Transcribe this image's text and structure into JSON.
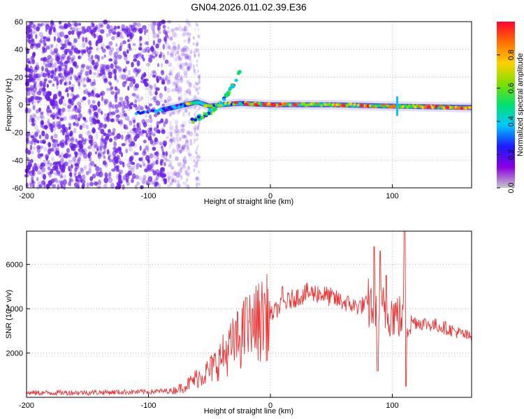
{
  "figure_title": "GN04.2026.011.02.39.E36",
  "colors": {
    "snr_line": "#ee3333",
    "scatter_purple": "#6a1fe6",
    "colorbar_stops": [
      "#c8c8c8",
      "#8a00e0",
      "#1a1aff",
      "#00c8ff",
      "#00e070",
      "#7ee000",
      "#ffd000",
      "#ff7000",
      "#ff0030"
    ]
  },
  "chart_data": [
    {
      "type": "heatmap",
      "title": "GN04.2026.011.02.39.E36",
      "xlabel": "Height of straight line (km)",
      "ylabel": "Frequency (Hz)",
      "xlim": [
        -200,
        165
      ],
      "ylim": [
        -60,
        60
      ],
      "x_ticks": [
        -200,
        -100,
        0,
        100
      ],
      "y_ticks": [
        -60,
        -40,
        -20,
        0,
        20,
        40,
        60
      ],
      "grid": true,
      "colorbar": {
        "label": "Normalized spectral amplitude",
        "range": [
          0,
          1
        ],
        "ticks": [
          "0.0",
          "0.2",
          "0.4",
          "0.6",
          "0.8"
        ]
      },
      "features": {
        "noise_region_x": [
          -200,
          -60
        ],
        "rising_branch": [
          [
            -65,
            -12
          ],
          [
            -55,
            -8
          ],
          [
            -45,
            -3
          ],
          [
            -40,
            2
          ],
          [
            -35,
            8
          ],
          [
            -30,
            15
          ],
          [
            -25,
            25
          ]
        ],
        "main_track": [
          [
            -110,
            -6
          ],
          [
            -90,
            -4
          ],
          [
            -70,
            0
          ],
          [
            -60,
            2
          ],
          [
            -50,
            -1
          ],
          [
            -40,
            0
          ],
          [
            -25,
            1
          ],
          [
            0,
            0
          ],
          [
            50,
            0
          ],
          [
            100,
            -1
          ],
          [
            165,
            -2
          ]
        ],
        "spike_x": 104
      }
    },
    {
      "type": "line",
      "xlabel": "Height of straight line (km)",
      "ylabel": "SNR (10 * v/v)",
      "xlim": [
        -200,
        165
      ],
      "ylim": [
        0,
        7500
      ],
      "x_ticks": [
        -200,
        -100,
        0,
        100
      ],
      "y_ticks": [
        2000,
        4000,
        6000
      ],
      "grid": true,
      "series": [
        {
          "envelope": [
            [
              -200,
              200
            ],
            [
              -150,
              220
            ],
            [
              -100,
              250
            ],
            [
              -80,
              300
            ],
            [
              -70,
              500
            ],
            [
              -60,
              900
            ],
            [
              -50,
              1200
            ],
            [
              -40,
              1800
            ],
            [
              -30,
              2400
            ],
            [
              -20,
              3000
            ],
            [
              -10,
              3400
            ],
            [
              0,
              3700
            ],
            [
              10,
              4200
            ],
            [
              20,
              4500
            ],
            [
              30,
              4700
            ],
            [
              40,
              4700
            ],
            [
              50,
              4500
            ],
            [
              60,
              4300
            ],
            [
              70,
              4100
            ],
            [
              80,
              4200
            ],
            [
              90,
              4000
            ],
            [
              100,
              3800
            ],
            [
              110,
              3500
            ],
            [
              120,
              3400
            ],
            [
              140,
              3200
            ],
            [
              165,
              2700
            ]
          ],
          "spikes": [
            [
              -20,
              4500
            ],
            [
              -15,
              4000
            ],
            [
              -5,
              4700
            ],
            [
              10,
              5000
            ],
            [
              85,
              6800
            ],
            [
              90,
              6600
            ],
            [
              95,
              5500
            ],
            [
              110,
              7500
            ]
          ],
          "dips": [
            [
              88,
              1200
            ],
            [
              111,
              500
            ]
          ]
        }
      ]
    }
  ]
}
